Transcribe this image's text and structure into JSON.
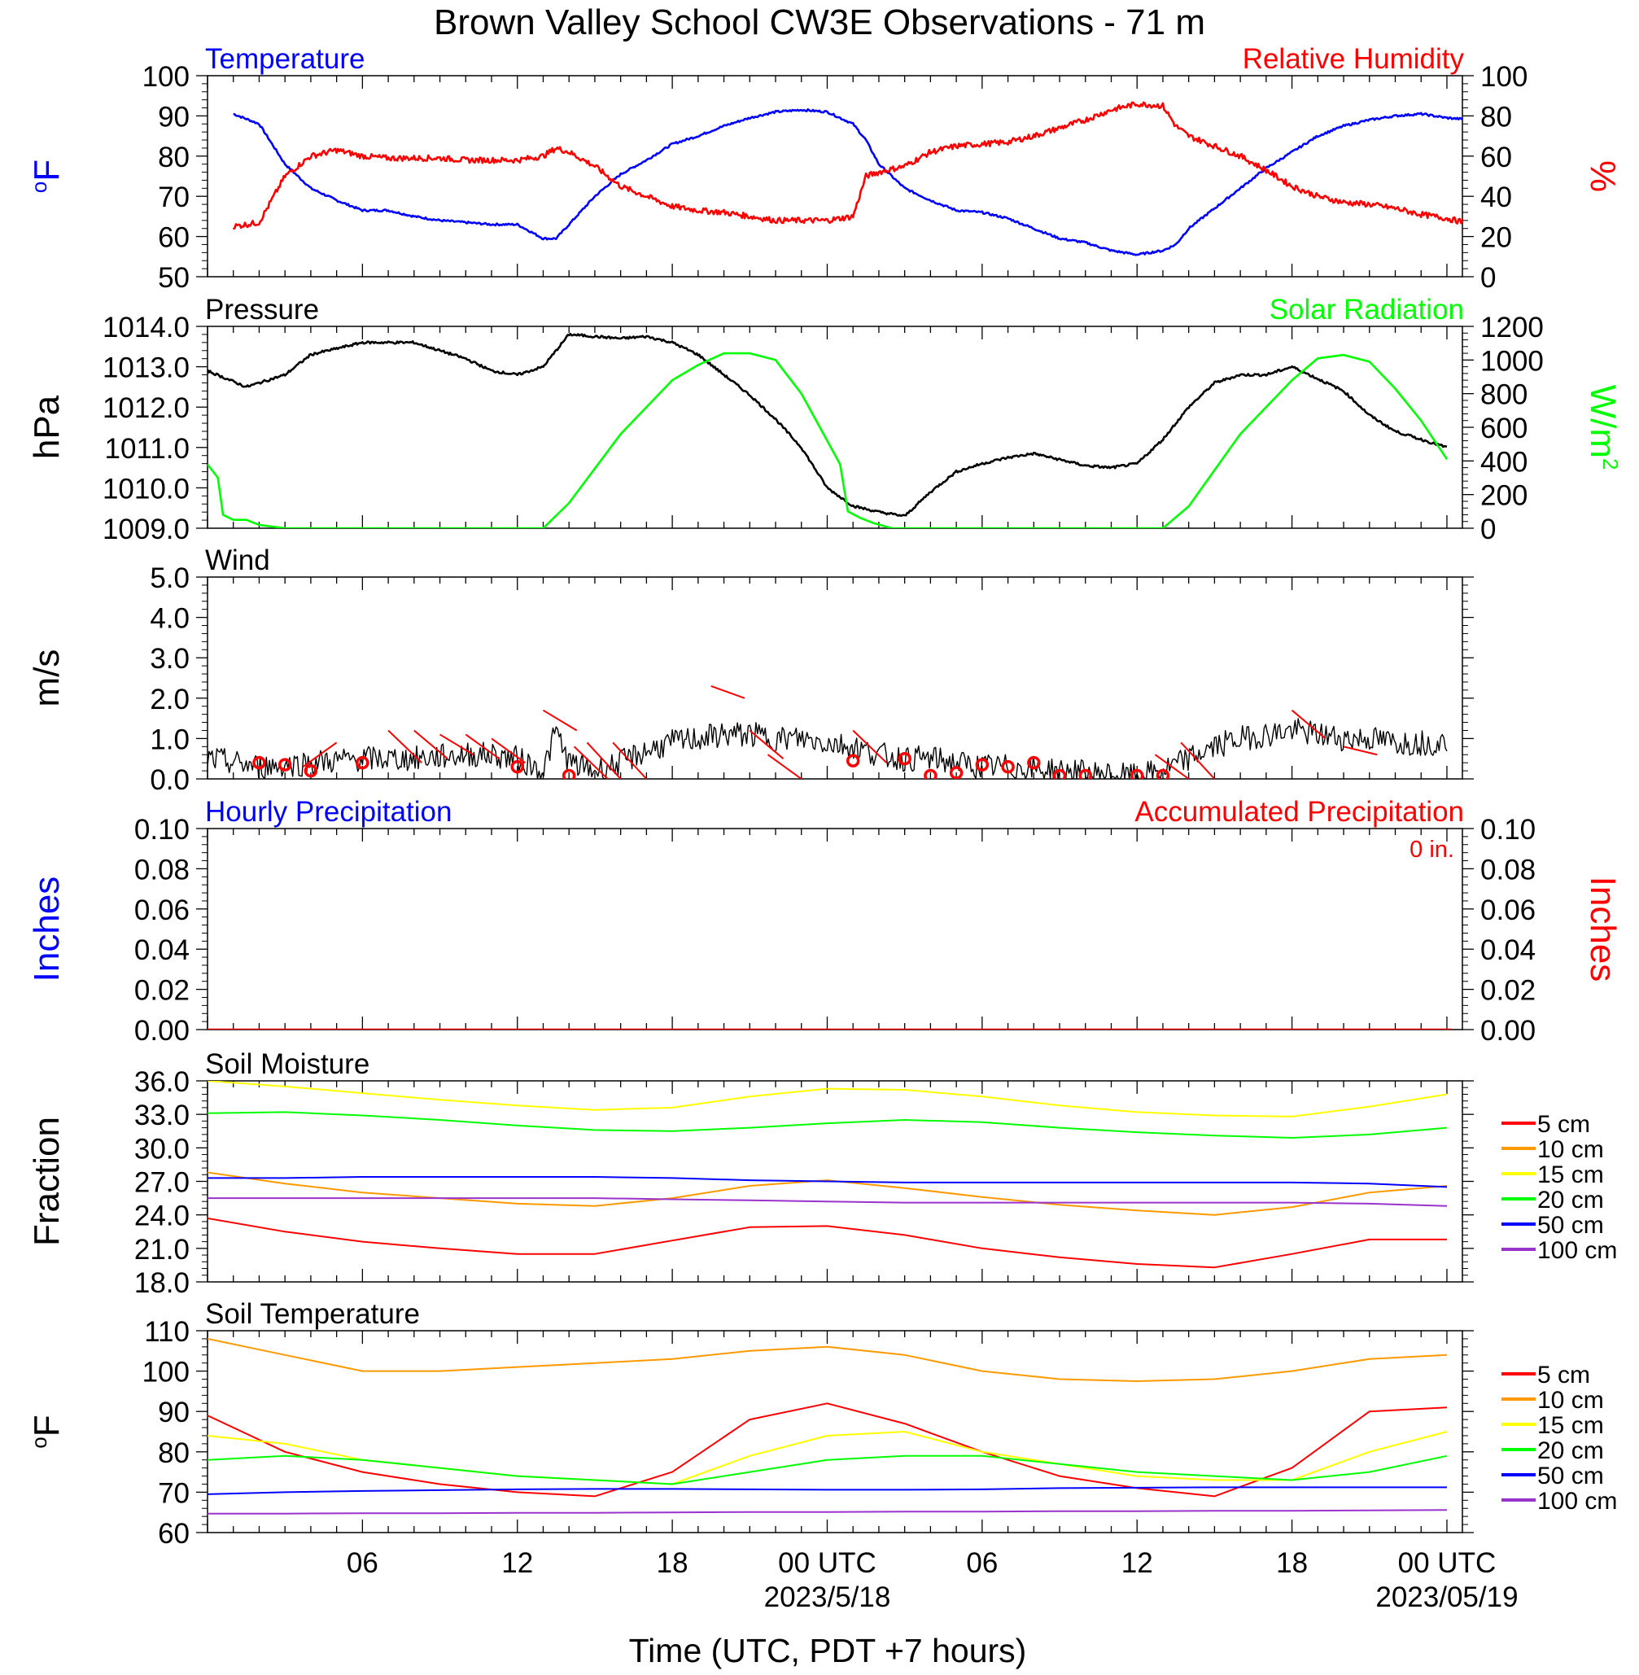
{
  "title": "Brown Valley School CW3E Observations - 71 m",
  "x_axis": {
    "label": "Time (UTC, PDT +7 hours)",
    "tick_labels": [
      "06",
      "12",
      "18",
      "00 UTC",
      "06",
      "12",
      "18",
      "00 UTC"
    ],
    "date_labels": [
      "2023/5/18",
      "2023/05/19"
    ]
  },
  "chart_data": [
    {
      "type": "line",
      "panel": "temperature-humidity",
      "title_left": "Temperature",
      "title_right": "Relative Humidity",
      "ylabel_left": "oF",
      "ylabel_right": "%",
      "ylim_left": [
        50,
        100
      ],
      "ylim_right": [
        0,
        100
      ],
      "yticks_left": [
        "100",
        "90",
        "80",
        "70",
        "60",
        "50"
      ],
      "yticks_right": [
        "100",
        "80",
        "60",
        "40",
        "20",
        "0"
      ],
      "x_hours": [
        1,
        2,
        3,
        4,
        5,
        6,
        7,
        8,
        9,
        10,
        11,
        12,
        13,
        13.5,
        14,
        15,
        16,
        17,
        18,
        19,
        20,
        21,
        22,
        23,
        24,
        25,
        25.5,
        26,
        27,
        28,
        29,
        30,
        31,
        32,
        33,
        34,
        35,
        36,
        37,
        37.5,
        38,
        39,
        40,
        41,
        42,
        43,
        44,
        45,
        46,
        47,
        48,
        49
      ],
      "series": [
        {
          "name": "Temperature",
          "color": "#0000ff",
          "axis": "left",
          "values": [
            90.5,
            88,
            78,
            72,
            69,
            66.5,
            66.5,
            65,
            64,
            63.5,
            63,
            63,
            59.5,
            59.5,
            63,
            70,
            75.5,
            79,
            83,
            85,
            87.5,
            89.5,
            91,
            91.5,
            91,
            88,
            84,
            78,
            72,
            69,
            66.5,
            66,
            64.5,
            62,
            59.5,
            58.5,
            56.5,
            55.5,
            56.5,
            58,
            62,
            67,
            72,
            77,
            81,
            85,
            87.5,
            89,
            90,
            90.5,
            89.5,
            89
          ]
        },
        {
          "name": "Relative Humidity",
          "color": "#ff0000",
          "axis": "right",
          "values": [
            25,
            27,
            50,
            60,
            63,
            60,
            59,
            59,
            59,
            58,
            58,
            58,
            60,
            64,
            62,
            55,
            45,
            40,
            35,
            33,
            32,
            30,
            28,
            28,
            28,
            30,
            50,
            52,
            55,
            62,
            65,
            66,
            67,
            70,
            74,
            78,
            83,
            86,
            85,
            75,
            70,
            65,
            60,
            53,
            45,
            40,
            37,
            36,
            34,
            31,
            29,
            26
          ]
        }
      ]
    },
    {
      "type": "line",
      "panel": "pressure-solar",
      "title_left": "Pressure",
      "title_right": "Solar Radiation",
      "ylabel_left": "hPa",
      "ylabel_right": "W/m2",
      "ylim_left": [
        1009,
        1014
      ],
      "ylim_right": [
        0,
        1200
      ],
      "yticks_left": [
        "1014.0",
        "1013.0",
        "1012.0",
        "1011.0",
        "1010.0",
        "1009.0"
      ],
      "yticks_right": [
        "1200",
        "1000",
        "800",
        "600",
        "400",
        "200",
        "0"
      ],
      "series": [
        {
          "name": "Pressure",
          "color": "#000000",
          "axis": "left",
          "x_hours": [
            0,
            1.5,
            3,
            4,
            6,
            8,
            9,
            10,
            11,
            12,
            13,
            14,
            15,
            16,
            17,
            18,
            19,
            20,
            21,
            22,
            23,
            24,
            25,
            26,
            27,
            28,
            29,
            30,
            31,
            32,
            33,
            34,
            35,
            36,
            37,
            38,
            39,
            40,
            41,
            42,
            43,
            44,
            45,
            46,
            47,
            48
          ],
          "values": [
            1012.9,
            1012.5,
            1012.8,
            1013.3,
            1013.6,
            1013.6,
            1013.4,
            1013.2,
            1012.9,
            1012.8,
            1013.0,
            1013.8,
            1013.75,
            1013.7,
            1013.75,
            1013.6,
            1013.3,
            1012.8,
            1012.3,
            1011.7,
            1011.0,
            1010.0,
            1009.55,
            1009.4,
            1009.3,
            1009.9,
            1010.4,
            1010.6,
            1010.75,
            1010.85,
            1010.7,
            1010.55,
            1010.5,
            1010.6,
            1011.2,
            1012.0,
            1012.6,
            1012.8,
            1012.8,
            1013.0,
            1012.7,
            1012.4,
            1011.8,
            1011.4,
            1011.2,
            1011.0
          ]
        },
        {
          "name": "Solar Radiation",
          "color": "#00ff00",
          "axis": "right",
          "x_hours": [
            0,
            0.4,
            0.6,
            1,
            1.5,
            2,
            3,
            12,
            13,
            14,
            16,
            18,
            19,
            20,
            21,
            22,
            23,
            24,
            24.5,
            24.8,
            25.3,
            25.8,
            26.5,
            27,
            36,
            37,
            38,
            40,
            42,
            43,
            44,
            45,
            46,
            47,
            48
          ],
          "values": [
            380,
            300,
            80,
            50,
            50,
            20,
            0,
            0,
            0,
            150,
            560,
            880,
            970,
            1040,
            1040,
            1000,
            800,
            520,
            380,
            100,
            60,
            30,
            0,
            0,
            0,
            0,
            130,
            560,
            880,
            1010,
            1030,
            990,
            830,
            640,
            410
          ]
        }
      ]
    },
    {
      "type": "line",
      "panel": "wind",
      "title_left": "Wind",
      "ylabel_left": "m/s",
      "ylim_left": [
        0,
        5
      ],
      "yticks_left": [
        "5.0",
        "4.0",
        "3.0",
        "2.0",
        "1.0",
        "0.0"
      ],
      "series": [
        {
          "name": "Wind",
          "color": "#000000",
          "x_hours": [
            0,
            2,
            4,
            6,
            8,
            10,
            11,
            12,
            13,
            13.5,
            14,
            15,
            16,
            17,
            18,
            19,
            20,
            21,
            22,
            23,
            24,
            25,
            26,
            27,
            28,
            29,
            30,
            31,
            32,
            33,
            34,
            35,
            36,
            37,
            38,
            39,
            40,
            41,
            42,
            43,
            44,
            45,
            46,
            47,
            48
          ],
          "values": [
            0.5,
            0.3,
            0.4,
            0.5,
            0.5,
            0.6,
            0.6,
            0.5,
            0.2,
            1.2,
            0.4,
            0.2,
            0.4,
            0.7,
            0.9,
            1.0,
            1.1,
            1.1,
            1.0,
            1.0,
            0.9,
            0.8,
            0.6,
            0.5,
            0.5,
            0.4,
            0.3,
            0.3,
            0.25,
            0.2,
            0.15,
            0.1,
            0.05,
            0.2,
            0.5,
            0.8,
            1.0,
            1.1,
            1.2,
            1.1,
            1.0,
            1.0,
            0.9,
            0.9,
            0.9
          ]
        },
        {
          "name": "Calm markers",
          "color": "#ff0000",
          "x_hours": [
            2,
            3,
            4,
            6,
            12,
            14,
            25,
            27,
            28,
            29,
            30,
            31,
            32,
            33,
            34,
            36,
            37
          ],
          "values": [
            0.4,
            0.35,
            0.2,
            0.4,
            0.3,
            0.0,
            0.45,
            0.5,
            0.0,
            0.15,
            0.35,
            0.3,
            0.4,
            0.0,
            0.0,
            0.0,
            0.0
          ]
        }
      ]
    },
    {
      "type": "line",
      "panel": "precipitation",
      "title_left": "Hourly Precipitation",
      "title_right": "Accumulated Precipitation",
      "annotation": "0 in.",
      "ylabel_left": "Inches",
      "ylabel_right": "Inches",
      "ylim_left": [
        0,
        0.1
      ],
      "ylim_right": [
        0,
        0.1
      ],
      "yticks_left": [
        "0.10",
        "0.08",
        "0.06",
        "0.04",
        "0.02",
        "0.00"
      ],
      "yticks_right": [
        "0.10",
        "0.08",
        "0.06",
        "0.04",
        "0.02",
        "0.00"
      ],
      "series": [
        {
          "name": "Accumulated Precipitation",
          "color": "#ff0000",
          "x_hours": [
            0,
            48.2
          ],
          "values": [
            0,
            0
          ]
        }
      ]
    },
    {
      "type": "line",
      "panel": "soil-moisture",
      "title_left": "Soil Moisture",
      "ylabel_left": "Fraction",
      "ylim_left": [
        18,
        36
      ],
      "yticks_left": [
        "36.0",
        "33.0",
        "30.0",
        "27.0",
        "24.0",
        "21.0",
        "18.0"
      ],
      "legend": [
        "5 cm",
        "10 cm",
        "15 cm",
        "20 cm",
        "50 cm",
        "100 cm"
      ],
      "x_hours": [
        0,
        3,
        6,
        9,
        12,
        15,
        18,
        21,
        24,
        27,
        30,
        33,
        36,
        39,
        42,
        45,
        48
      ],
      "series": [
        {
          "name": "5 cm",
          "color": "#ff0000",
          "values": [
            23.7,
            22.5,
            21.6,
            21.0,
            20.5,
            20.5,
            21.7,
            22.9,
            23.0,
            22.2,
            21.0,
            20.2,
            19.6,
            19.3,
            20.5,
            21.8,
            21.8
          ]
        },
        {
          "name": "10 cm",
          "color": "#ff9900",
          "values": [
            27.8,
            26.8,
            26.0,
            25.5,
            25.0,
            24.8,
            25.5,
            26.6,
            27.1,
            26.4,
            25.6,
            24.9,
            24.4,
            24.0,
            24.7,
            26.0,
            26.6
          ]
        },
        {
          "name": "15 cm",
          "color": "#ffff00",
          "values": [
            36.0,
            35.5,
            34.9,
            34.3,
            33.8,
            33.4,
            33.6,
            34.6,
            35.3,
            35.2,
            34.6,
            33.8,
            33.2,
            32.9,
            32.8,
            33.7,
            34.8
          ]
        },
        {
          "name": "20 cm",
          "color": "#00ff00",
          "values": [
            33.1,
            33.2,
            32.9,
            32.5,
            32.0,
            31.6,
            31.5,
            31.8,
            32.2,
            32.5,
            32.3,
            31.8,
            31.4,
            31.1,
            30.9,
            31.2,
            31.8
          ]
        },
        {
          "name": "50 cm",
          "color": "#0000ff",
          "values": [
            27.3,
            27.3,
            27.4,
            27.4,
            27.4,
            27.4,
            27.3,
            27.1,
            27.0,
            26.9,
            26.9,
            26.9,
            26.9,
            26.9,
            26.9,
            26.8,
            26.5
          ]
        },
        {
          "name": "100 cm",
          "color": "#9933cc",
          "values": [
            25.5,
            25.5,
            25.5,
            25.5,
            25.5,
            25.5,
            25.4,
            25.3,
            25.2,
            25.1,
            25.1,
            25.1,
            25.1,
            25.1,
            25.1,
            25.0,
            24.8
          ]
        }
      ]
    },
    {
      "type": "line",
      "panel": "soil-temperature",
      "title_left": "Soil Temperature",
      "ylabel_left": "oF",
      "ylim_left": [
        60,
        110
      ],
      "yticks_left": [
        "110",
        "100",
        "90",
        "80",
        "70",
        "60"
      ],
      "legend": [
        "5 cm",
        "10 cm",
        "15 cm",
        "20 cm",
        "50 cm",
        "100 cm"
      ],
      "x_hours": [
        0,
        3,
        6,
        9,
        12,
        15,
        18,
        21,
        24,
        27,
        30,
        33,
        36,
        39,
        42,
        45,
        48
      ],
      "series": [
        {
          "name": "5 cm",
          "color": "#ff0000",
          "values": [
            89,
            80,
            75,
            72,
            70,
            69,
            75,
            88,
            92,
            87,
            80,
            74,
            71,
            69,
            76,
            90,
            91
          ]
        },
        {
          "name": "10 cm",
          "color": "#ff9900",
          "values": [
            108,
            104,
            100,
            100,
            101,
            102,
            103,
            105,
            106,
            104,
            100,
            98,
            97.5,
            98,
            100,
            103,
            104
          ]
        },
        {
          "name": "15 cm",
          "color": "#ffff00",
          "values": [
            84,
            82,
            78,
            76,
            74,
            73,
            72,
            79,
            84,
            85,
            80,
            77,
            74,
            73,
            73,
            80,
            85
          ]
        },
        {
          "name": "20 cm",
          "color": "#00ff00",
          "values": [
            78,
            79,
            78,
            76,
            74,
            73,
            72,
            75,
            78,
            79,
            79,
            77,
            75,
            74,
            73,
            75,
            79
          ]
        },
        {
          "name": "50 cm",
          "color": "#0000ff",
          "values": [
            69.5,
            70,
            70.3,
            70.5,
            70.7,
            70.8,
            70.8,
            70.7,
            70.6,
            70.6,
            70.7,
            71,
            71.1,
            71.2,
            71.2,
            71.2,
            71.2
          ]
        },
        {
          "name": "100 cm",
          "color": "#9933cc",
          "values": [
            64.7,
            64.7,
            64.8,
            64.8,
            64.9,
            64.9,
            65,
            65.1,
            65.1,
            65.2,
            65.2,
            65.3,
            65.3,
            65.4,
            65.4,
            65.5,
            65.6
          ]
        }
      ]
    }
  ]
}
